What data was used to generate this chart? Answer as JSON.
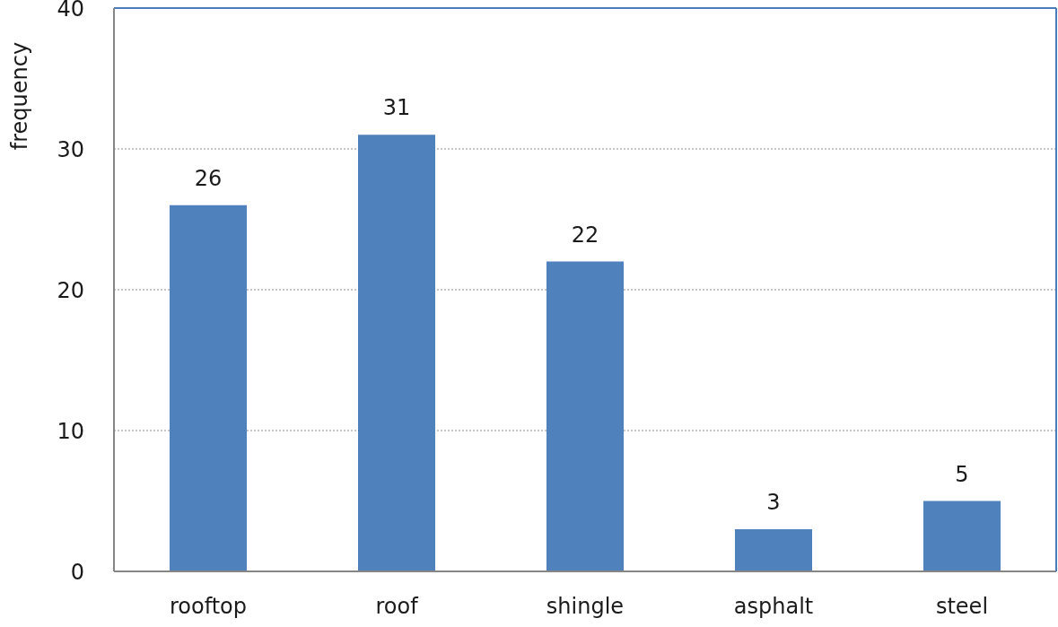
{
  "chart_data": {
    "type": "bar",
    "ylabel": "frequency",
    "categories": [
      "rooftop",
      "roof",
      "shingle",
      "asphalt",
      "steel"
    ],
    "values": [
      26,
      31,
      22,
      3,
      5
    ],
    "color": "#4f81bd",
    "ylim": [
      0,
      40
    ],
    "yticks": [
      0,
      10,
      20,
      30,
      40
    ],
    "grid": "y",
    "data_labels": true
  }
}
